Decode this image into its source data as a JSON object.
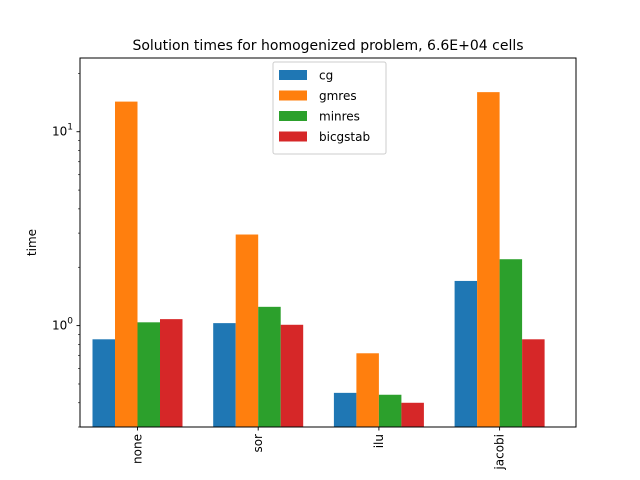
{
  "chart_data": {
    "type": "bar",
    "title": "Solution times for homogenized problem, 6.6E+04 cells",
    "xlabel": "",
    "ylabel": "time",
    "yscale": "log",
    "ylim": [
      0.3,
      24
    ],
    "yticks": [
      {
        "value": 1,
        "base": "10",
        "exp": "0"
      },
      {
        "value": 10,
        "base": "10",
        "exp": "1"
      }
    ],
    "categories": [
      "none",
      "sor",
      "ilu",
      "jacobi"
    ],
    "category_label_rotation": "vertical",
    "series": [
      {
        "name": "cg",
        "color": "#1f77b4",
        "values": [
          0.85,
          1.03,
          0.45,
          1.7
        ]
      },
      {
        "name": "gmres",
        "color": "#ff7f0e",
        "values": [
          14.3,
          2.95,
          0.72,
          16.0
        ]
      },
      {
        "name": "minres",
        "color": "#2ca02c",
        "values": [
          1.04,
          1.25,
          0.44,
          2.2
        ]
      },
      {
        "name": "bicgstab",
        "color": "#d62728",
        "values": [
          1.08,
          1.01,
          0.4,
          0.85
        ]
      }
    ],
    "legend": {
      "position": "top-center"
    },
    "grid": false
  }
}
